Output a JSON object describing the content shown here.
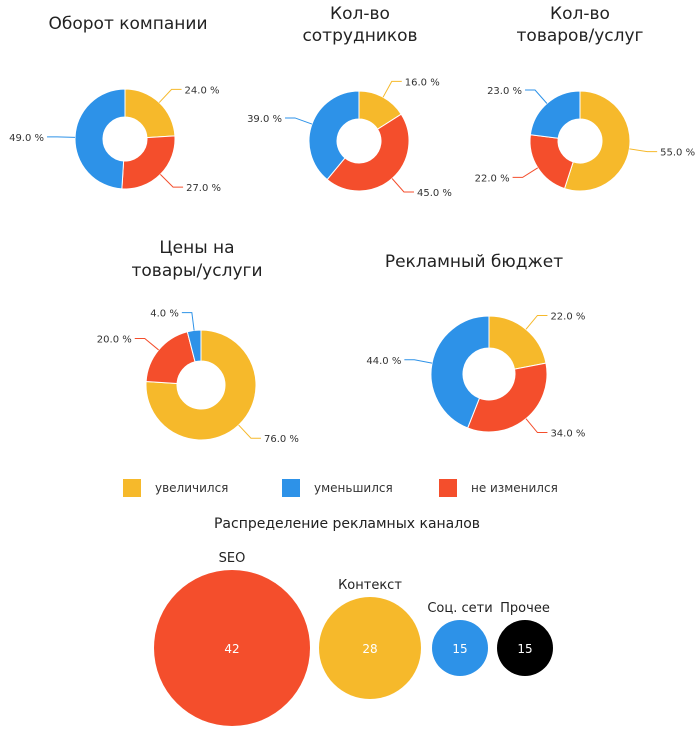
{
  "colors": {
    "increased": "#f6b92b",
    "decreased": "#2d92e8",
    "unchanged": "#f44e2c",
    "other": "#000000"
  },
  "legend": [
    {
      "key": "increased",
      "label": "увеличился"
    },
    {
      "key": "decreased",
      "label": "уменьшился"
    },
    {
      "key": "unchanged",
      "label": "не изменился"
    }
  ],
  "chart_data": [
    {
      "type": "pie",
      "title": [
        "Оборот компании"
      ],
      "slices": [
        {
          "key": "increased",
          "value": 24.0,
          "label": "24.0 %"
        },
        {
          "key": "unchanged",
          "value": 27.0,
          "label": "27.0 %"
        },
        {
          "key": "decreased",
          "value": 49.0,
          "label": "49.0 %"
        }
      ]
    },
    {
      "type": "pie",
      "title": [
        "Кол-во",
        "сотрудников"
      ],
      "slices": [
        {
          "key": "increased",
          "value": 16.0,
          "label": "16.0 %"
        },
        {
          "key": "unchanged",
          "value": 45.0,
          "label": "45.0 %"
        },
        {
          "key": "decreased",
          "value": 39.0,
          "label": "39.0 %"
        }
      ]
    },
    {
      "type": "pie",
      "title": [
        "Кол-во",
        "товаров/услуг"
      ],
      "slices": [
        {
          "key": "increased",
          "value": 55.0,
          "label": "55.0 %"
        },
        {
          "key": "unchanged",
          "value": 22.0,
          "label": "22.0 %"
        },
        {
          "key": "decreased",
          "value": 23.0,
          "label": "23.0 %"
        }
      ]
    },
    {
      "type": "pie",
      "title": [
        "Цены на",
        "товары/услуги"
      ],
      "slices": [
        {
          "key": "increased",
          "value": 76.0,
          "label": "76.0 %"
        },
        {
          "key": "unchanged",
          "value": 20.0,
          "label": "20.0 %"
        },
        {
          "key": "decreased",
          "value": 4.0,
          "label": "4.0 %"
        }
      ]
    },
    {
      "type": "pie",
      "title": [
        "Рекламный бюджет"
      ],
      "slices": [
        {
          "key": "increased",
          "value": 22.0,
          "label": "22.0 %"
        },
        {
          "key": "unchanged",
          "value": 34.0,
          "label": "34.0 %"
        },
        {
          "key": "decreased",
          "value": 44.0,
          "label": "44.0 %"
        }
      ]
    },
    {
      "type": "bubble",
      "title": "Распределение рекламных каналов",
      "items": [
        {
          "label": "SEO",
          "value": 42,
          "key": "unchanged"
        },
        {
          "label": "Контекст",
          "value": 28,
          "key": "increased"
        },
        {
          "label": "Соц. сети",
          "value": 15,
          "key": "decreased"
        },
        {
          "label": "Прочее",
          "value": 15,
          "key": "other"
        }
      ]
    }
  ]
}
